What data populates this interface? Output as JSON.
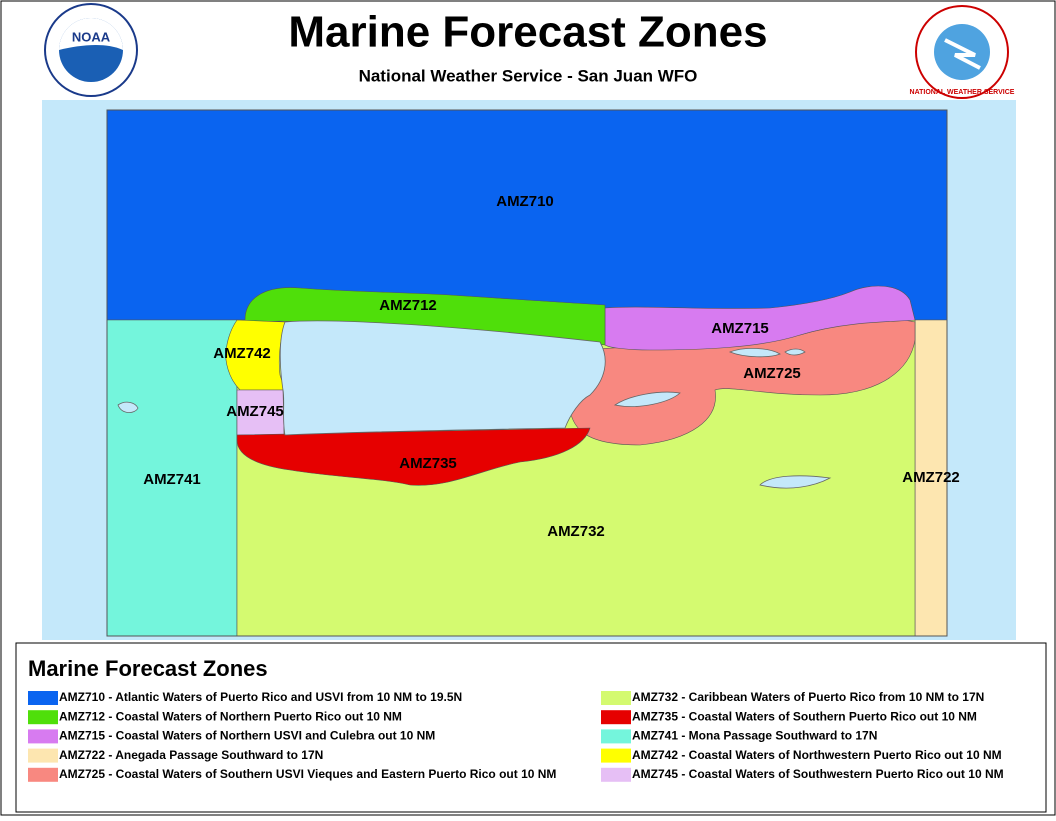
{
  "header": {
    "title": "Marine Forecast Zones",
    "subtitle": "National Weather Service - San Juan WFO"
  },
  "logos": {
    "noaa": "NOAA",
    "nws": "NATIONAL WEATHER SERVICE"
  },
  "map": {
    "labels": [
      "AMZ710",
      "AMZ712",
      "AMZ715",
      "AMZ742",
      "AMZ725",
      "AMZ745",
      "AMZ735",
      "AMZ741",
      "AMZ722",
      "AMZ732"
    ]
  },
  "legend": {
    "title": "Marine Forecast Zones",
    "items": [
      {
        "text": "AMZ710 - Atlantic Waters of Puerto Rico and USVI from 10 NM to 19.5N",
        "color": "#0a64f0"
      },
      {
        "text": "AMZ712 - Coastal Waters of Northern Puerto Rico out 10 NM",
        "color": "#4fdf0a"
      },
      {
        "text": "AMZ715 - Coastal Waters of Northern USVI and Culebra out 10 NM",
        "color": "#d77bf0"
      },
      {
        "text": "AMZ722 - Anegada Passage Southward to 17N",
        "color": "#fde6b0"
      },
      {
        "text": "AMZ725 - Coastal Waters of Southern USVI Vieques and Eastern Puerto Rico out 10 NM",
        "color": "#f88880"
      },
      {
        "text": "AMZ732 - Caribbean Waters of Puerto Rico from 10 NM to 17N",
        "color": "#d4fa70"
      },
      {
        "text": "AMZ735 - Coastal Waters of Southern Puerto Rico out 10 NM",
        "color": "#e60000"
      },
      {
        "text": "AMZ741 - Mona Passage Southward to 17N",
        "color": "#74f5dc"
      },
      {
        "text": "AMZ742 - Coastal Waters of Northwestern Puerto Rico out 10 NM",
        "color": "#ffff00"
      },
      {
        "text": "AMZ745 - Coastal Waters of Southwestern Puerto Rico out 10 NM",
        "color": "#e6bff5"
      }
    ]
  }
}
